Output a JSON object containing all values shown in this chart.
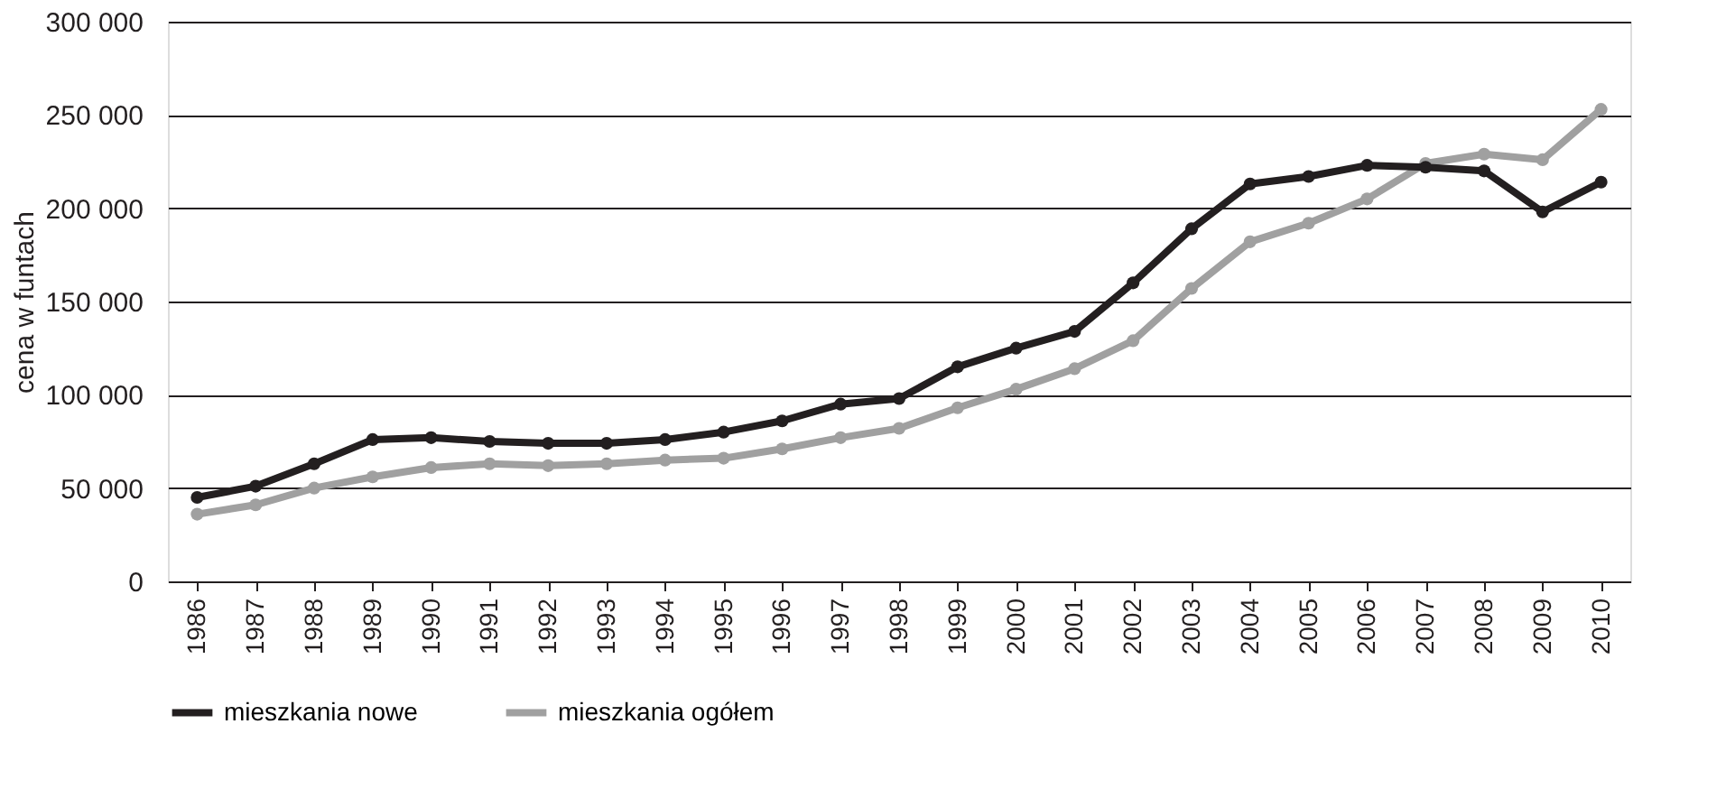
{
  "chart_data": {
    "type": "line",
    "ylabel": "cena w funtach",
    "categories": [
      "1986",
      "1987",
      "1988",
      "1989",
      "1990",
      "1991",
      "1992",
      "1993",
      "1994",
      "1995",
      "1996",
      "1997",
      "1998",
      "1999",
      "2000",
      "2001",
      "2002",
      "2003",
      "2004",
      "2005",
      "2006",
      "2007",
      "2008",
      "2009",
      "2010"
    ],
    "series": [
      {
        "name": "mieszkania nowe",
        "color": "#231f20",
        "values": [
          45000,
          51000,
          63000,
          76000,
          77000,
          75000,
          74000,
          74000,
          76000,
          80000,
          86000,
          95000,
          98000,
          115000,
          125000,
          134000,
          160000,
          189000,
          213000,
          217000,
          223000,
          222000,
          220000,
          198000,
          214000
        ]
      },
      {
        "name": "mieszkania ogółem",
        "color": "#a0a0a0",
        "values": [
          36000,
          41000,
          50000,
          56000,
          61000,
          63000,
          62000,
          63000,
          65000,
          66000,
          71000,
          77000,
          82000,
          93000,
          103000,
          114000,
          129000,
          157000,
          182000,
          192000,
          205000,
          224000,
          229000,
          226000,
          253000
        ]
      }
    ],
    "ylim": [
      0,
      300000
    ],
    "yticks": [
      {
        "value": 0,
        "label": "0"
      },
      {
        "value": 50000,
        "label": "50 000"
      },
      {
        "value": 100000,
        "label": "100 000"
      },
      {
        "value": 150000,
        "label": "150 000"
      },
      {
        "value": 200000,
        "label": "200 000"
      },
      {
        "value": 250000,
        "label": "250 000"
      },
      {
        "value": 300000,
        "label": "300 000"
      }
    ],
    "grid": "y",
    "legend": "bottom",
    "marker": "circle",
    "line_style": "solid"
  }
}
